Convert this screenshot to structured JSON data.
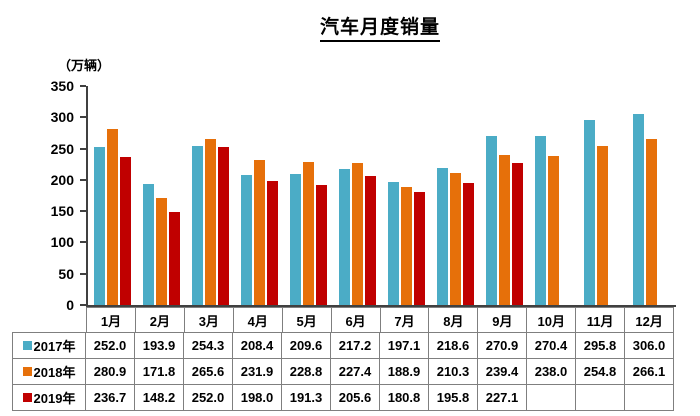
{
  "title": "汽车月度销量",
  "y_axis": {
    "unit_label": "（万辆）",
    "ticks": [
      350,
      300,
      250,
      200,
      150,
      100,
      50,
      0
    ],
    "min": 0,
    "max": 350
  },
  "chart_data": {
    "type": "bar",
    "title": "汽车月度销量",
    "ylabel": "（万辆）",
    "xlabel": "",
    "ylim": [
      0,
      350
    ],
    "grid": false,
    "legend_position": "table-left",
    "categories": [
      "1月",
      "2月",
      "3月",
      "4月",
      "5月",
      "6月",
      "7月",
      "8月",
      "9月",
      "10月",
      "11月",
      "12月"
    ],
    "series": [
      {
        "name": "2017年",
        "color": "#4BACC6",
        "values": [
          252.0,
          193.9,
          254.3,
          208.4,
          209.6,
          217.2,
          197.1,
          218.6,
          270.9,
          270.4,
          295.8,
          306.0
        ]
      },
      {
        "name": "2018年",
        "color": "#E6700A",
        "values": [
          280.9,
          171.8,
          265.6,
          231.9,
          228.8,
          227.4,
          188.9,
          210.3,
          239.4,
          238.0,
          254.8,
          266.1
        ]
      },
      {
        "name": "2019年",
        "color": "#C00000",
        "values": [
          236.7,
          148.2,
          252.0,
          198.0,
          191.3,
          205.6,
          180.8,
          195.8,
          227.1,
          null,
          null,
          null
        ]
      }
    ]
  },
  "table": {
    "rows": [
      {
        "label": "2017年",
        "swatch_color": "#4BACC6",
        "values": [
          "252.0",
          "193.9",
          "254.3",
          "208.4",
          "209.6",
          "217.2",
          "197.1",
          "218.6",
          "270.9",
          "270.4",
          "295.8",
          "306.0"
        ]
      },
      {
        "label": "2018年",
        "swatch_color": "#E6700A",
        "values": [
          "280.9",
          "171.8",
          "265.6",
          "231.9",
          "228.8",
          "227.4",
          "188.9",
          "210.3",
          "239.4",
          "238.0",
          "254.8",
          "266.1"
        ]
      },
      {
        "label": "2019年",
        "swatch_color": "#C00000",
        "values": [
          "236.7",
          "148.2",
          "252.0",
          "198.0",
          "191.3",
          "205.6",
          "180.8",
          "195.8",
          "227.1",
          "",
          "",
          ""
        ]
      }
    ]
  },
  "colors": {
    "axis": "#404040",
    "table_border": "#7F7F7F",
    "text": "#000000",
    "background": "#FFFFFF"
  }
}
